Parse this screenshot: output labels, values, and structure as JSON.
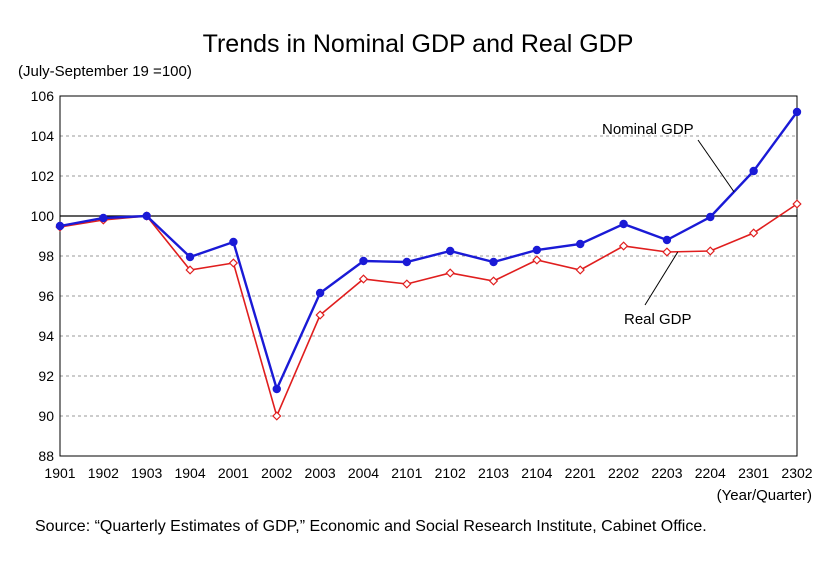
{
  "chart_data": {
    "type": "line",
    "title": "Trends in Nominal GDP and Real GDP",
    "subtitle": "(July-September 19 =100)",
    "xlabel": "(Year/Quarter)",
    "ylabel": "",
    "ylim": [
      88,
      106
    ],
    "yticks": [
      88,
      90,
      92,
      94,
      96,
      98,
      100,
      102,
      104,
      106
    ],
    "grid": true,
    "reference_line": 100,
    "categories": [
      "1901",
      "1902",
      "1903",
      "1904",
      "2001",
      "2002",
      "2003",
      "2004",
      "2101",
      "2102",
      "2103",
      "2104",
      "2201",
      "2202",
      "2203",
      "2204",
      "2301",
      "2302"
    ],
    "series": [
      {
        "name": "Nominal GDP",
        "color": "#1a1ad6",
        "marker": "filled-circle",
        "values": [
          99.5,
          99.9,
          100.0,
          97.95,
          98.7,
          91.35,
          96.15,
          97.75,
          97.7,
          98.25,
          97.7,
          98.3,
          98.6,
          99.6,
          98.8,
          99.95,
          102.25,
          105.2
        ]
      },
      {
        "name": "Real GDP",
        "color": "#e01e1e",
        "marker": "open-diamond",
        "values": [
          99.45,
          99.8,
          100.0,
          97.3,
          97.65,
          90.0,
          95.05,
          96.85,
          96.6,
          97.15,
          96.75,
          97.8,
          97.3,
          98.5,
          98.2,
          98.25,
          99.15,
          100.6
        ]
      }
    ],
    "annotations": {
      "nominal_label": "Nominal GDP",
      "real_label": "Real GDP"
    }
  },
  "source": "Source: “Quarterly Estimates of GDP,” Economic and Social Research Institute, Cabinet Office."
}
